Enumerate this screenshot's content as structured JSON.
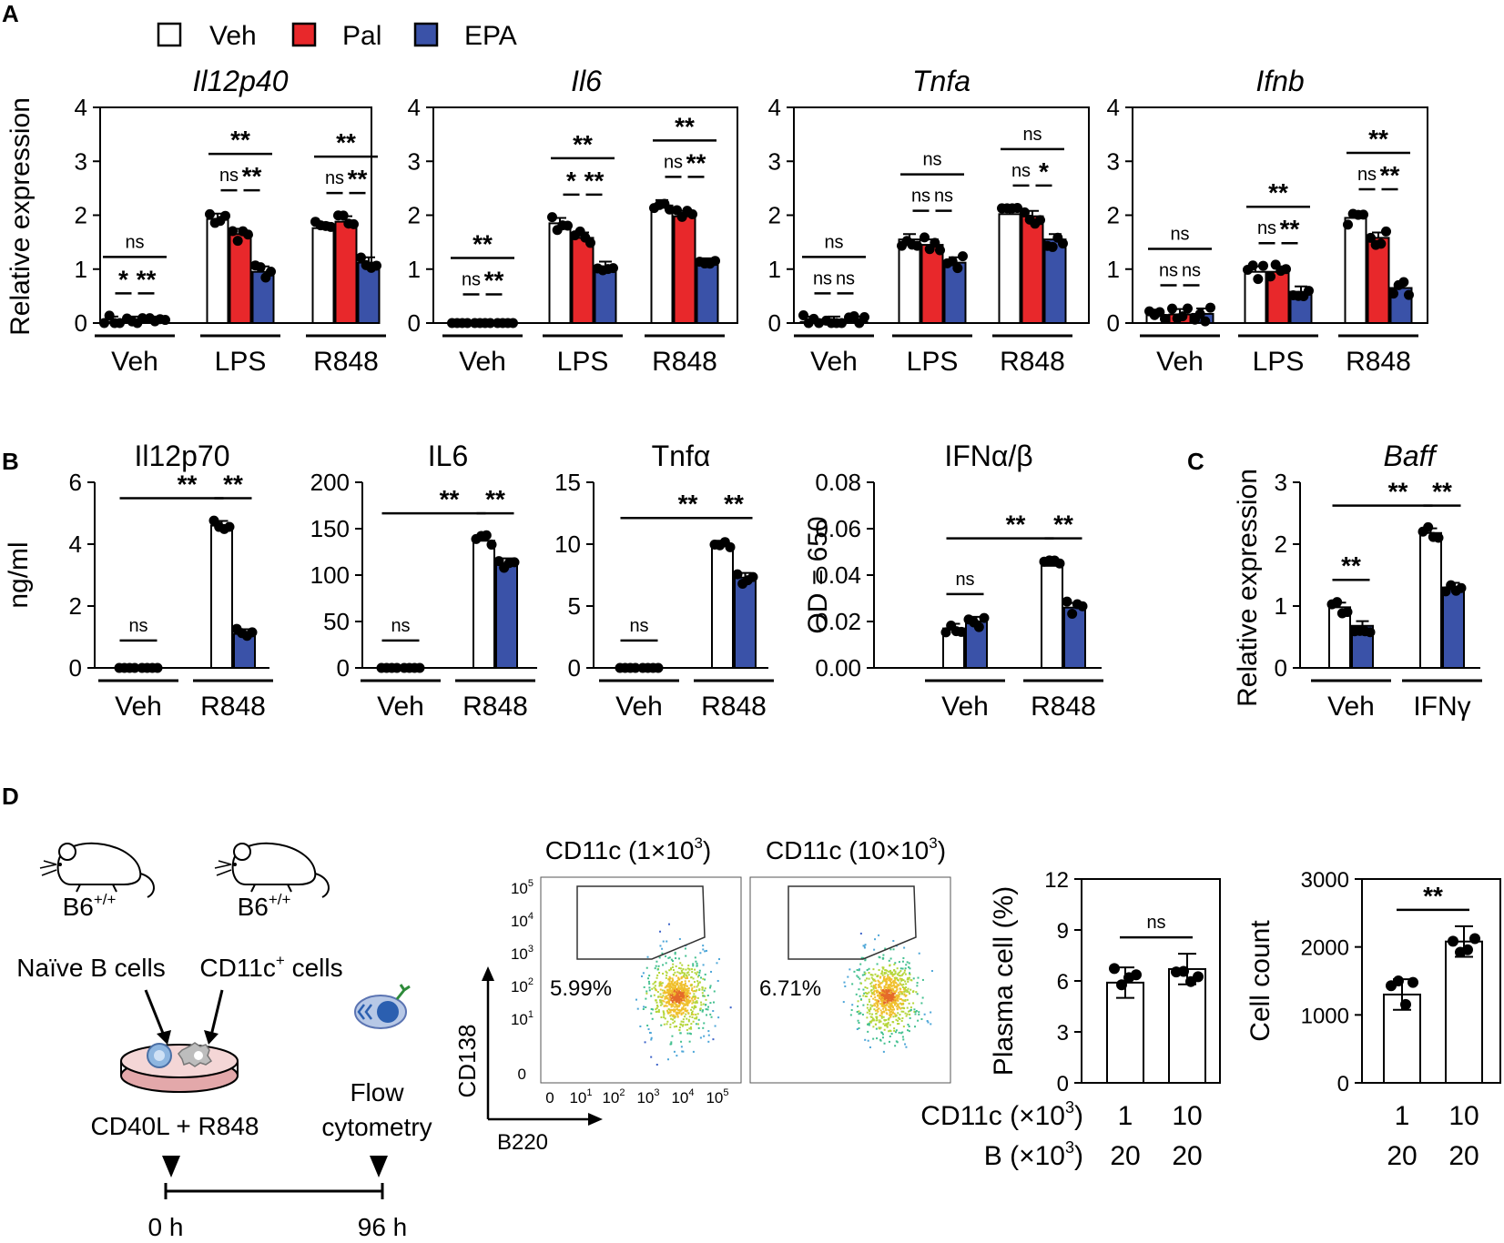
{
  "panel_labels": {
    "a": "A",
    "b": "B",
    "c": "C",
    "d": "D"
  },
  "legend": [
    {
      "label": "Veh",
      "color": "#ffffff"
    },
    {
      "label": "Pal",
      "color": "#e8282b"
    },
    {
      "label": "EPA",
      "color": "#3a52a8"
    }
  ],
  "panel_a": {
    "ylabel": "Relative expression",
    "groups": [
      "Veh",
      "LPS",
      "R848"
    ]
  },
  "panel_d": {
    "diagram": {
      "mouse1_strain": "B6",
      "mouse1_sup": "+/+",
      "mouse1_cells": "Naïve B cells",
      "mouse2_strain": "B6",
      "mouse2_sup": "+/+",
      "mouse2_cells_a": "CD11c",
      "mouse2_cells_sup": "+",
      "mouse2_cells_b": " cells",
      "treatment": "CD40L + R848",
      "flow_1": "Flow",
      "flow_2": "cytometry",
      "t0": "0 h",
      "t1": "96 h"
    },
    "flow": {
      "yaxis": "CD138",
      "xaxis": "B220",
      "plots": [
        {
          "title_a": "CD11c (1×10",
          "title_sup": "3",
          "title_b": ")",
          "percent": "5.99%"
        },
        {
          "title_a": "CD11c (10×10",
          "title_sup": "3",
          "title_b": ")",
          "percent": "6.71%"
        }
      ],
      "ytick_exps": [
        "5",
        "4",
        "3",
        "2",
        "1"
      ],
      "ytick_zero": "0",
      "xtick_exps": [
        "1",
        "2",
        "3",
        "4",
        "5"
      ],
      "xtick_zero": "0",
      "tick_base": "10"
    },
    "row_labels": [
      {
        "a": "CD11c (×10",
        "sup": "3",
        "b": ")",
        "values": [
          "1",
          "10"
        ]
      },
      {
        "a": "B (×10",
        "sup": "3",
        "b": ")",
        "values": [
          "20",
          "20"
        ]
      }
    ]
  },
  "chart_data": [
    {
      "id": "A-Il12p40",
      "type": "bar",
      "title": "Il12p40",
      "italic": true,
      "ylabel": "Relative expression",
      "ylim": [
        0,
        4
      ],
      "yticks": [
        "0",
        "1",
        "2",
        "3",
        "4"
      ],
      "categories": [
        "Veh",
        "LPS",
        "R848"
      ],
      "series": [
        {
          "name": "Veh",
          "values": [
            0.02,
            1.93,
            1.76
          ]
        },
        {
          "name": "Pal",
          "values": [
            0.02,
            1.65,
            1.88
          ]
        },
        {
          "name": "EPA",
          "values": [
            0.02,
            0.95,
            1.12
          ]
        }
      ],
      "significance": [
        {
          "group": "Veh",
          "pair": "Veh-EPA",
          "label": "ns"
        },
        {
          "group": "Veh",
          "pair": "Veh-Pal",
          "label": "*"
        },
        {
          "group": "Veh",
          "pair": "Pal-EPA",
          "label": "**"
        },
        {
          "group": "LPS",
          "pair": "Veh-EPA",
          "label": "**"
        },
        {
          "group": "LPS",
          "pair": "Veh-Pal",
          "label": "ns"
        },
        {
          "group": "LPS",
          "pair": "Pal-EPA",
          "label": "**"
        },
        {
          "group": "R848",
          "pair": "Veh-EPA",
          "label": "**"
        },
        {
          "group": "R848",
          "pair": "Veh-Pal",
          "label": "ns"
        },
        {
          "group": "R848",
          "pair": "Pal-EPA",
          "label": "**"
        }
      ]
    },
    {
      "id": "A-Il6",
      "type": "bar",
      "title": "Il6",
      "italic": true,
      "ylim": [
        0,
        4
      ],
      "yticks": [
        "0",
        "1",
        "2",
        "3",
        "4"
      ],
      "categories": [
        "Veh",
        "LPS",
        "R848"
      ],
      "series": [
        {
          "name": "Veh",
          "values": [
            0.0,
            1.85,
            2.18
          ]
        },
        {
          "name": "Pal",
          "values": [
            0.0,
            1.58,
            1.98
          ]
        },
        {
          "name": "EPA",
          "values": [
            0.0,
            1.04,
            1.1
          ]
        }
      ],
      "significance": [
        {
          "group": "Veh",
          "pair": "Veh-EPA",
          "label": "**"
        },
        {
          "group": "Veh",
          "pair": "Veh-Pal",
          "label": "ns"
        },
        {
          "group": "Veh",
          "pair": "Pal-EPA",
          "label": "**"
        },
        {
          "group": "LPS",
          "pair": "Veh-EPA",
          "label": "**"
        },
        {
          "group": "LPS",
          "pair": "Veh-Pal",
          "label": "*"
        },
        {
          "group": "LPS",
          "pair": "Pal-EPA",
          "label": "**"
        },
        {
          "group": "R848",
          "pair": "Veh-EPA",
          "label": "**"
        },
        {
          "group": "R848",
          "pair": "Veh-Pal",
          "label": "ns"
        },
        {
          "group": "R848",
          "pair": "Pal-EPA",
          "label": "**"
        }
      ]
    },
    {
      "id": "A-Tnfa",
      "type": "bar",
      "title": "Tnfa",
      "italic": true,
      "ylim": [
        0,
        4
      ],
      "yticks": [
        "0",
        "1",
        "2",
        "3",
        "4"
      ],
      "categories": [
        "Veh",
        "LPS",
        "R848"
      ],
      "series": [
        {
          "name": "Veh",
          "values": [
            0.02,
            1.55,
            2.02
          ]
        },
        {
          "name": "Pal",
          "values": [
            0.02,
            1.45,
            1.98
          ]
        },
        {
          "name": "EPA",
          "values": [
            0.02,
            1.12,
            1.55
          ]
        }
      ],
      "significance": [
        {
          "group": "Veh",
          "pair": "Veh-EPA",
          "label": "ns"
        },
        {
          "group": "Veh",
          "pair": "Veh-Pal",
          "label": "ns"
        },
        {
          "group": "Veh",
          "pair": "Pal-EPA",
          "label": "ns"
        },
        {
          "group": "LPS",
          "pair": "Veh-EPA",
          "label": "ns"
        },
        {
          "group": "LPS",
          "pair": "Veh-Pal",
          "label": "ns"
        },
        {
          "group": "LPS",
          "pair": "Pal-EPA",
          "label": "ns"
        },
        {
          "group": "R848",
          "pair": "Veh-EPA",
          "label": "ns"
        },
        {
          "group": "R848",
          "pair": "Veh-Pal",
          "label": "ns"
        },
        {
          "group": "R848",
          "pair": "Pal-EPA",
          "label": "*"
        }
      ]
    },
    {
      "id": "A-Ifnb",
      "type": "bar",
      "title": "Ifnb",
      "italic": true,
      "ylim": [
        0,
        4
      ],
      "yticks": [
        "0",
        "1",
        "2",
        "3",
        "4"
      ],
      "categories": [
        "Veh",
        "LPS",
        "R848"
      ],
      "series": [
        {
          "name": "Veh",
          "values": [
            0.15,
            0.95,
            1.95
          ]
        },
        {
          "name": "Pal",
          "values": [
            0.16,
            0.95,
            1.58
          ]
        },
        {
          "name": "EPA",
          "values": [
            0.17,
            0.58,
            0.65
          ]
        }
      ],
      "significance": [
        {
          "group": "Veh",
          "pair": "Veh-EPA",
          "label": "ns"
        },
        {
          "group": "Veh",
          "pair": "Veh-Pal",
          "label": "ns"
        },
        {
          "group": "Veh",
          "pair": "Pal-EPA",
          "label": "ns"
        },
        {
          "group": "LPS",
          "pair": "Veh-EPA",
          "label": "**"
        },
        {
          "group": "LPS",
          "pair": "Veh-Pal",
          "label": "ns"
        },
        {
          "group": "LPS",
          "pair": "Pal-EPA",
          "label": "**"
        },
        {
          "group": "R848",
          "pair": "Veh-EPA",
          "label": "**"
        },
        {
          "group": "R848",
          "pair": "Veh-Pal",
          "label": "ns"
        },
        {
          "group": "R848",
          "pair": "Pal-EPA",
          "label": "**"
        }
      ]
    },
    {
      "id": "B-Il12p70",
      "type": "bar",
      "title": "Il12p70",
      "italic": false,
      "ylabel": "ng/ml",
      "ylim": [
        0,
        6
      ],
      "yticks": [
        "0",
        "2",
        "4",
        "6"
      ],
      "categories": [
        "Veh",
        "R848"
      ],
      "series": [
        {
          "name": "Veh",
          "values": [
            0.0,
            4.6
          ]
        },
        {
          "name": "EPA",
          "values": [
            0.0,
            1.1
          ]
        }
      ],
      "significance": [
        {
          "group": "Veh",
          "pair": "Veh-EPA",
          "label": "ns"
        },
        {
          "group": "R848",
          "pair": "Veh-EPA",
          "label": "**"
        },
        {
          "group": "across",
          "pair": "Veh:Veh-R848:Veh",
          "label": "**"
        }
      ]
    },
    {
      "id": "B-IL6",
      "type": "bar",
      "title": "IL6",
      "italic": false,
      "ylim": [
        0,
        200
      ],
      "yticks": [
        "0",
        "50",
        "100",
        "150",
        "200"
      ],
      "categories": [
        "Veh",
        "R848"
      ],
      "series": [
        {
          "name": "Veh",
          "values": [
            0.0,
            137
          ]
        },
        {
          "name": "EPA",
          "values": [
            0.0,
            113
          ]
        }
      ],
      "significance": [
        {
          "group": "Veh",
          "pair": "Veh-EPA",
          "label": "ns"
        },
        {
          "group": "R848",
          "pair": "Veh-EPA",
          "label": "**"
        },
        {
          "group": "across",
          "pair": "Veh:Veh-R848:Veh",
          "label": "**"
        }
      ]
    },
    {
      "id": "B-Tnfa",
      "type": "bar",
      "title": "Tnfα",
      "italic": false,
      "ylim": [
        0,
        15
      ],
      "yticks": [
        "0",
        "5",
        "10",
        "15"
      ],
      "categories": [
        "Veh",
        "R848"
      ],
      "series": [
        {
          "name": "Veh",
          "values": [
            0.0,
            9.9
          ]
        },
        {
          "name": "EPA",
          "values": [
            0.0,
            7.3
          ]
        }
      ],
      "significance": [
        {
          "group": "Veh",
          "pair": "Veh-EPA",
          "label": "ns"
        },
        {
          "group": "R848",
          "pair": "Veh-EPA",
          "label": "**"
        },
        {
          "group": "across",
          "pair": "Veh:Veh-R848:Veh",
          "label": "**"
        }
      ]
    },
    {
      "id": "B-IFNab",
      "type": "bar",
      "title": "IFNα/β",
      "italic": false,
      "ylabel": "OD = 650",
      "ylim": [
        0,
        0.08
      ],
      "yticks": [
        "0.00",
        "0.02",
        "0.04",
        "0.06",
        "0.08"
      ],
      "categories": [
        "Veh",
        "R848"
      ],
      "series": [
        {
          "name": "Veh",
          "values": [
            0.017,
            0.044
          ]
        },
        {
          "name": "EPA",
          "values": [
            0.02,
            0.026
          ]
        }
      ],
      "significance": [
        {
          "group": "Veh",
          "pair": "Veh-EPA",
          "label": "ns"
        },
        {
          "group": "R848",
          "pair": "Veh-EPA",
          "label": "**"
        },
        {
          "group": "across",
          "pair": "Veh:Veh-R848:Veh",
          "label": "**"
        }
      ]
    },
    {
      "id": "C-Baff",
      "type": "bar",
      "title": "Baff",
      "italic": true,
      "ylabel": "Relative expression",
      "ylim": [
        0,
        3
      ],
      "yticks": [
        "0",
        "1",
        "2",
        "3"
      ],
      "categories": [
        "Veh",
        "IFNγ"
      ],
      "series": [
        {
          "name": "Veh",
          "values": [
            0.98,
            2.18
          ]
        },
        {
          "name": "EPA",
          "values": [
            0.68,
            1.3
          ]
        }
      ],
      "significance": [
        {
          "group": "Veh",
          "pair": "Veh-EPA",
          "label": "**"
        },
        {
          "group": "IFNγ",
          "pair": "Veh-EPA",
          "label": "**"
        },
        {
          "group": "across",
          "pair": "Veh:Veh-IFNγ:Veh",
          "label": "**"
        }
      ]
    },
    {
      "id": "D-Plasma",
      "type": "bar",
      "title": "",
      "ylabel": "Plasma cell (%)",
      "ylim": [
        0,
        12
      ],
      "yticks": [
        "0",
        "3",
        "6",
        "9",
        "12"
      ],
      "categories": [
        "1 / 20",
        "10 / 20"
      ],
      "values": [
        5.9,
        6.7
      ],
      "significance": [
        {
          "pair": "1-10",
          "label": "ns"
        }
      ]
    },
    {
      "id": "D-Count",
      "type": "bar",
      "title": "",
      "ylabel": "Cell count",
      "ylim": [
        0,
        3000
      ],
      "yticks": [
        "0",
        "1000",
        "2000",
        "3000"
      ],
      "categories": [
        "1 / 20",
        "10 / 20"
      ],
      "values": [
        1300,
        2080
      ],
      "significance": [
        {
          "pair": "1-10",
          "label": "**"
        }
      ]
    }
  ]
}
